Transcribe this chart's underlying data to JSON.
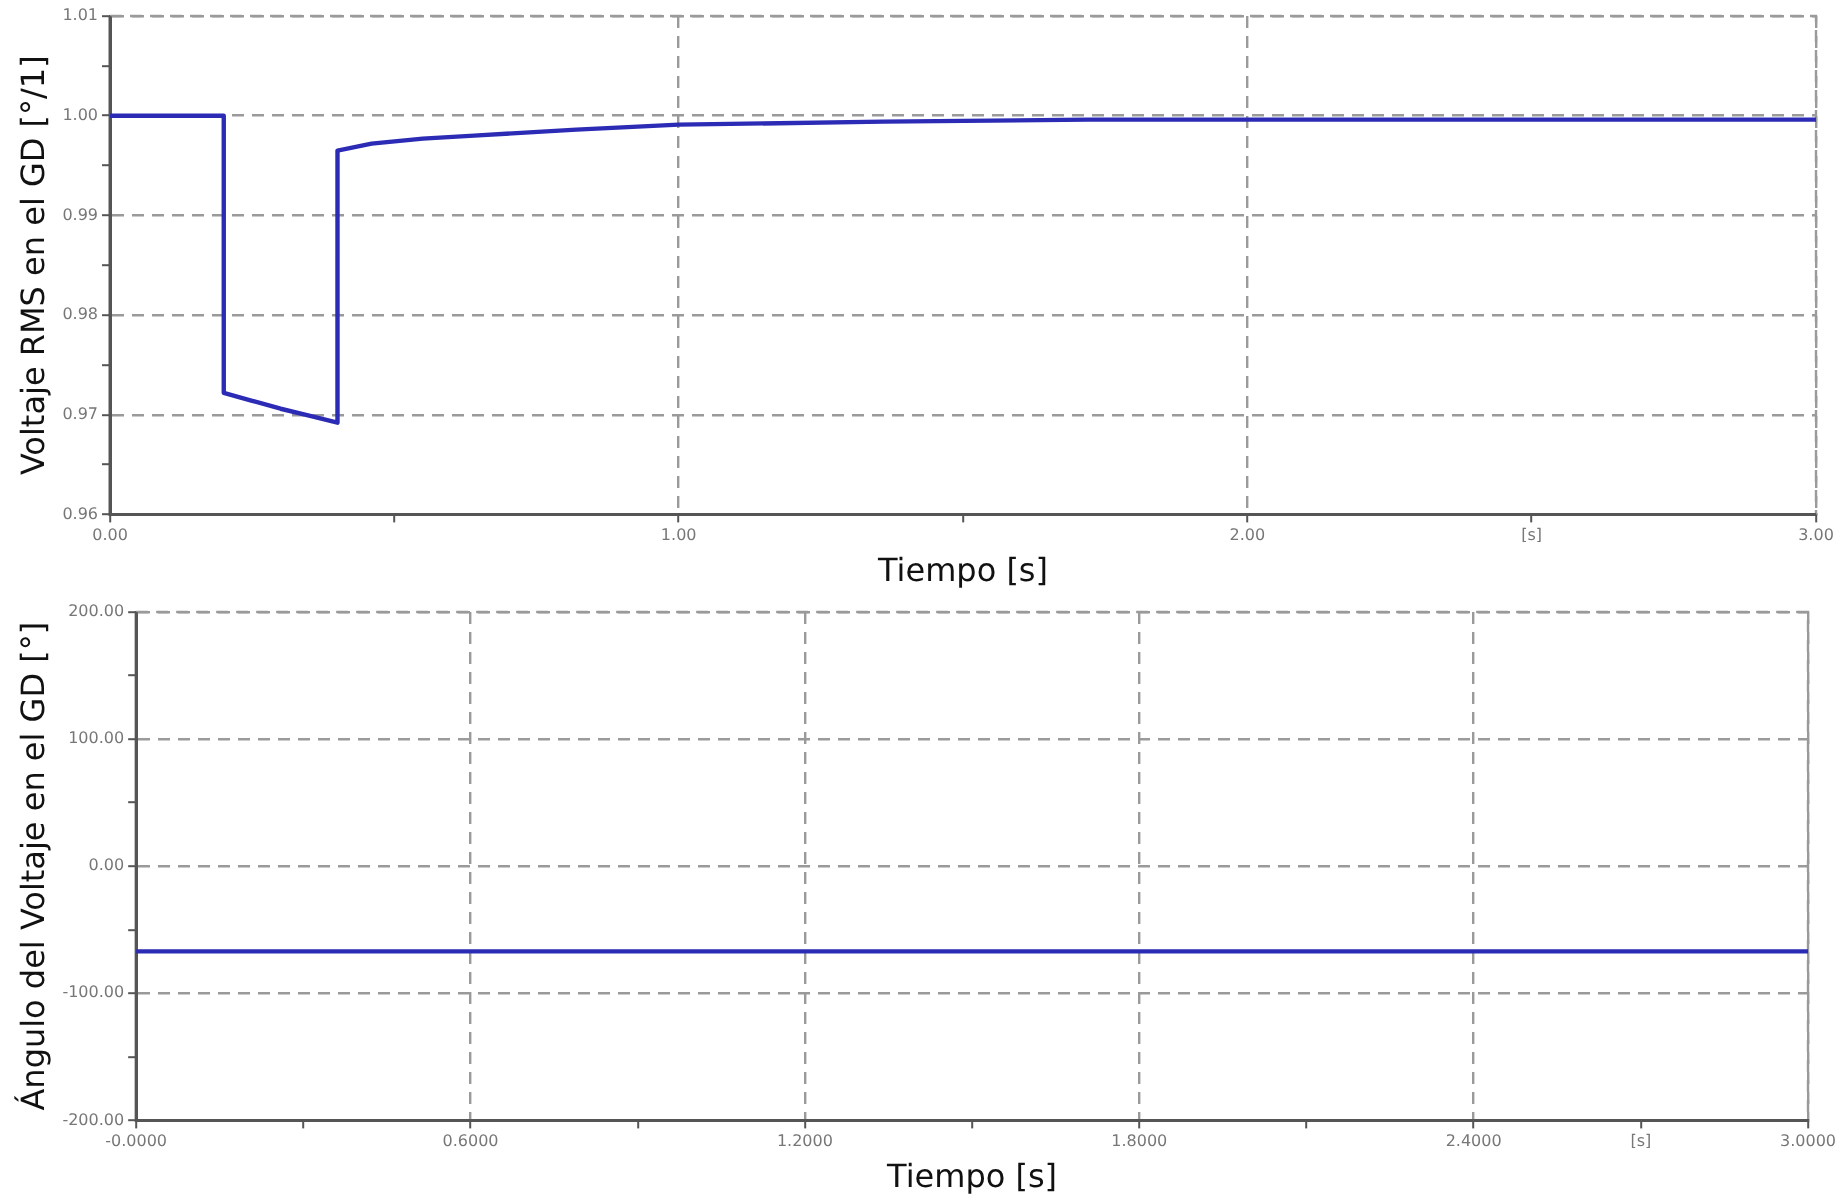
{
  "chart_data": [
    {
      "type": "line",
      "xlabel": "Tiempo [s]",
      "ylabel": "Voltaje RMS en el GD [°/1]",
      "xlim": [
        0,
        3
      ],
      "ylim": [
        0.96,
        1.01
      ],
      "xticks": [
        {
          "value": 0,
          "label": "0.00"
        },
        {
          "value": 0.5,
          "label": null
        },
        {
          "value": 1,
          "label": "1.00"
        },
        {
          "value": 1.5,
          "label": null
        },
        {
          "value": 2,
          "label": "2.00"
        },
        {
          "value": 2.5,
          "label": "[s]"
        },
        {
          "value": 3,
          "label": "3.00"
        }
      ],
      "yticks": [
        {
          "value": 0.96,
          "label": "0.96"
        },
        {
          "value": 0.965,
          "label": null
        },
        {
          "value": 0.97,
          "label": "0.97"
        },
        {
          "value": 0.975,
          "label": null
        },
        {
          "value": 0.98,
          "label": "0.98"
        },
        {
          "value": 0.985,
          "label": null
        },
        {
          "value": 0.99,
          "label": "0.99"
        },
        {
          "value": 0.995,
          "label": null
        },
        {
          "value": 1,
          "label": "1.00"
        },
        {
          "value": 1.005,
          "label": null
        },
        {
          "value": 1.01,
          "label": "1.01"
        }
      ],
      "grid": true,
      "legend": false,
      "marker": "none",
      "line_style": "solid",
      "series": [
        {
          "color": "#2b2bb5",
          "x": [
            0,
            0.2,
            0.2,
            0.25,
            0.3,
            0.35,
            0.4,
            0.4,
            0.46,
            0.55,
            0.64,
            0.82,
            1.0,
            1.36,
            1.72,
            2.2,
            3.0
          ],
          "values": [
            1.0,
            1.0,
            0.9722,
            0.9714,
            0.9706,
            0.9699,
            0.9692,
            0.9965,
            0.9972,
            0.9977,
            0.998,
            0.9986,
            0.9991,
            0.9994,
            0.9996,
            0.9996,
            0.9996
          ]
        }
      ]
    },
    {
      "type": "line",
      "xlabel": "Tiempo [s]",
      "ylabel": "Ángulo del Voltaje en el GD [°]",
      "xlim": [
        0,
        3
      ],
      "ylim": [
        -200,
        200
      ],
      "xticks": [
        {
          "value": 0,
          "label": "-0.0000"
        },
        {
          "value": 0.3,
          "label": null
        },
        {
          "value": 0.6,
          "label": "0.6000"
        },
        {
          "value": 0.9,
          "label": null
        },
        {
          "value": 1.2,
          "label": "1.2000"
        },
        {
          "value": 1.5,
          "label": null
        },
        {
          "value": 1.8,
          "label": "1.8000"
        },
        {
          "value": 2.1,
          "label": null
        },
        {
          "value": 2.4,
          "label": "2.4000"
        },
        {
          "value": 2.7,
          "label": "[s]"
        },
        {
          "value": 3,
          "label": "3.0000"
        }
      ],
      "yticks": [
        {
          "value": -200,
          "label": "-200.00"
        },
        {
          "value": -150,
          "label": null
        },
        {
          "value": -100,
          "label": "-100.00"
        },
        {
          "value": -50,
          "label": null
        },
        {
          "value": 0,
          "label": "0.00"
        },
        {
          "value": 50,
          "label": null
        },
        {
          "value": 100,
          "label": "100.00"
        },
        {
          "value": 150,
          "label": null
        },
        {
          "value": 200,
          "label": "200.00"
        }
      ],
      "grid": true,
      "legend": false,
      "marker": "none",
      "line_style": "solid",
      "series": [
        {
          "color": "#2b2bb5",
          "x": [
            0,
            3
          ],
          "values": [
            -67,
            -67
          ]
        }
      ]
    }
  ]
}
